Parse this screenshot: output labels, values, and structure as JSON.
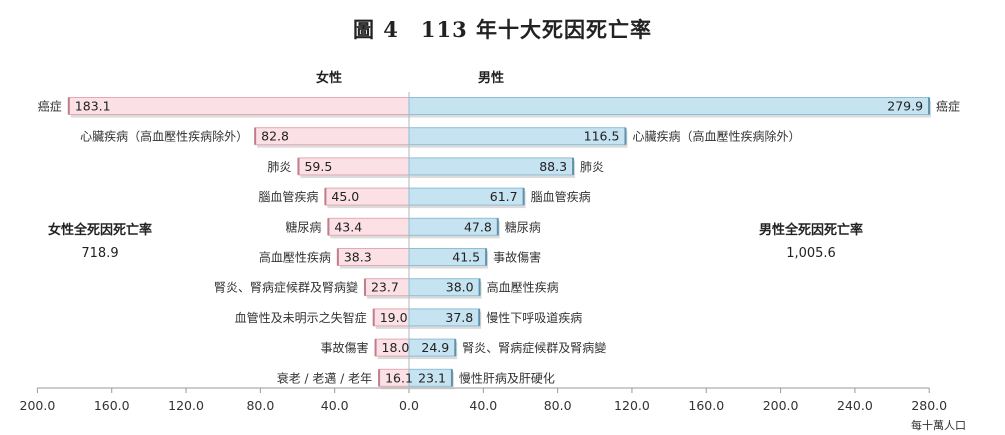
{
  "title": "圖 4　113 年十大死因死亡率",
  "chart_data": {
    "type": "bar",
    "orientation": "horizontal-back-to-back",
    "unit": "每十萬人口",
    "xlim_left": [
      200,
      0
    ],
    "xlim_right": [
      0,
      280
    ],
    "x_ticks": [
      "200.0",
      "160.0",
      "120.0",
      "80.0",
      "40.0",
      "0.0",
      "40.0",
      "80.0",
      "120.0",
      "160.0",
      "200.0",
      "240.0",
      "280.0"
    ],
    "series": [
      {
        "name": "女性",
        "side": "left",
        "color": "#fbe0e6",
        "edge_color": "#e4a9b5",
        "total_label": "女性全死因死亡率",
        "total_value": "718.9",
        "categories": [
          "癌症",
          "心臟疾病（高血壓性疾病除外）",
          "肺炎",
          "腦血管疾病",
          "糖尿病",
          "高血壓性疾病",
          "腎炎、腎病症候群及腎病變",
          "血管性及未明示之失智症",
          "事故傷害",
          "衰老 / 老邁 / 老年"
        ],
        "values": [
          183.1,
          82.8,
          59.5,
          45.0,
          43.4,
          38.3,
          23.7,
          19.0,
          18.0,
          16.1
        ],
        "value_labels": [
          "183.1",
          "82.8",
          "59.5",
          "45.0",
          "43.4",
          "38.3",
          "23.7",
          "19.0",
          "18.0",
          "16.1"
        ]
      },
      {
        "name": "男性",
        "side": "right",
        "color": "#c6e3f1",
        "edge_color": "#8fbfd6",
        "total_label": "男性全死因死亡率",
        "total_value": "1,005.6",
        "categories": [
          "癌症",
          "心臟疾病（高血壓性疾病除外）",
          "肺炎",
          "腦血管疾病",
          "糖尿病",
          "事故傷害",
          "高血壓性疾病",
          "慢性下呼吸道疾病",
          "腎炎、腎病症候群及腎病變",
          "慢性肝病及肝硬化"
        ],
        "values": [
          279.9,
          116.5,
          88.3,
          61.7,
          47.8,
          41.5,
          38.0,
          37.8,
          24.9,
          23.1
        ],
        "value_labels": [
          "279.9",
          "116.5",
          "88.3",
          "61.7",
          "47.8",
          "41.5",
          "38.0",
          "37.8",
          "24.9",
          "23.1"
        ]
      }
    ]
  }
}
